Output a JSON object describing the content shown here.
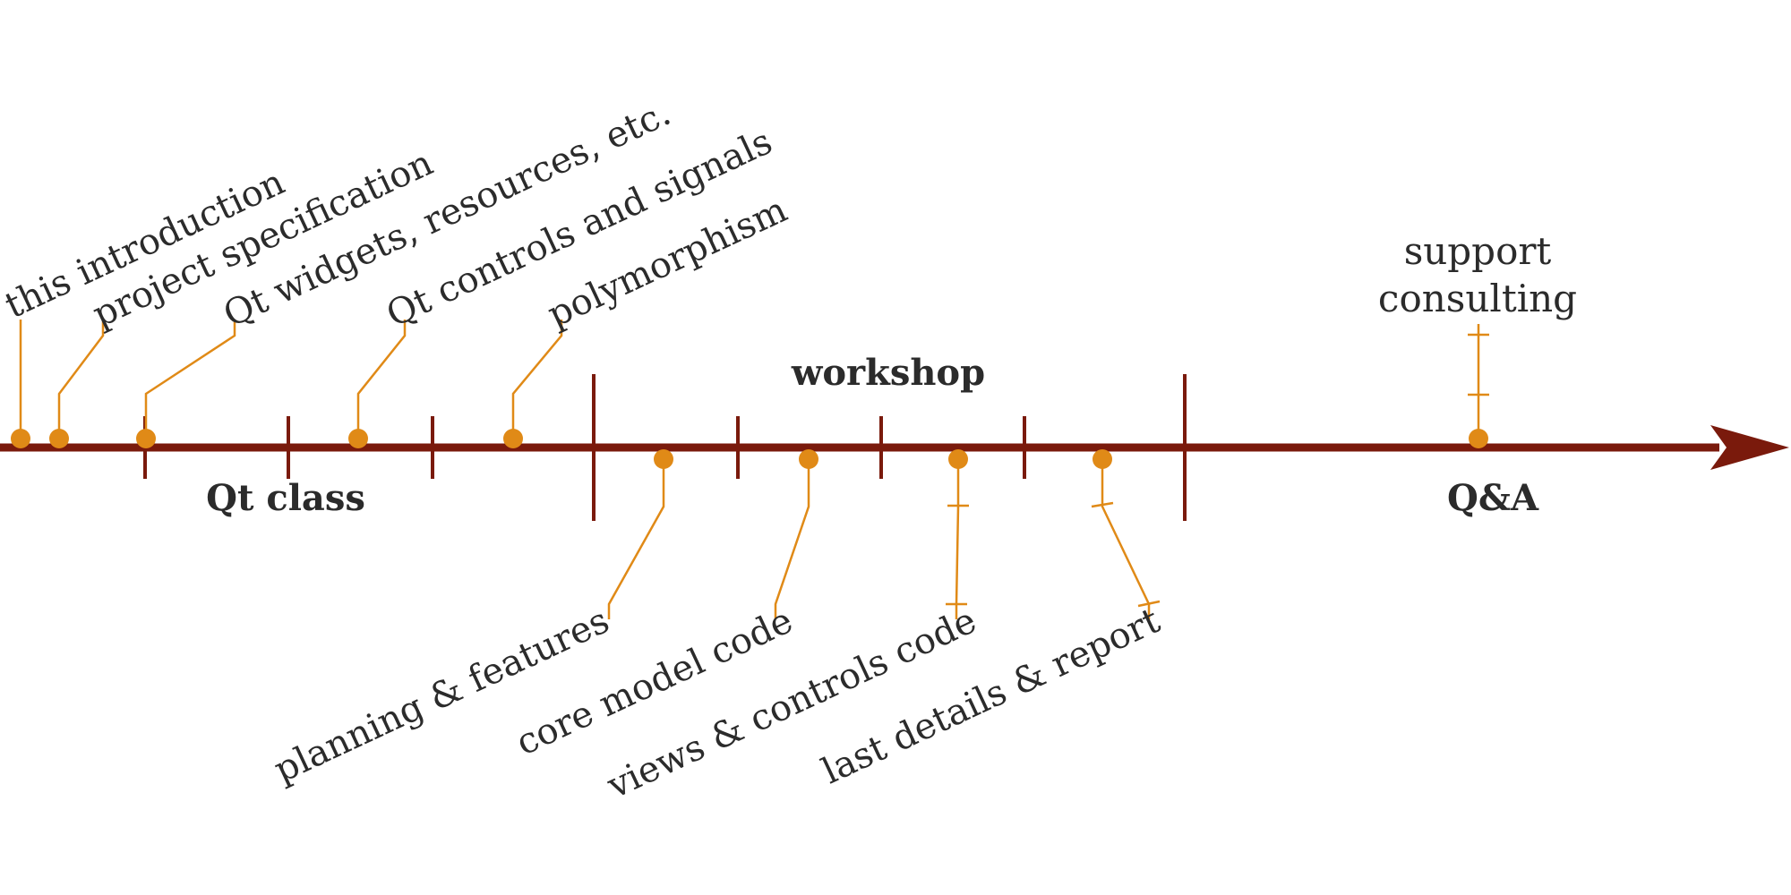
{
  "colors": {
    "axis": "#7a1a0c",
    "marker": "#e08a17",
    "text": "#2b2b2b",
    "background": "#ffffff"
  },
  "phases": [
    {
      "id": "qt-class",
      "label": "Qt class"
    },
    {
      "id": "workshop",
      "label": "workshop"
    },
    {
      "id": "qa",
      "label": "Q&A"
    }
  ],
  "events_above": [
    {
      "id": "this-introduction",
      "label": "this introduction"
    },
    {
      "id": "project-specification",
      "label": "project specification"
    },
    {
      "id": "qt-widgets",
      "label": "Qt widgets, resources, etc."
    },
    {
      "id": "qt-controls",
      "label": "Qt controls and signals"
    },
    {
      "id": "polymorphism",
      "label": "polymorphism"
    }
  ],
  "events_below": [
    {
      "id": "planning-features",
      "label": "planning & features"
    },
    {
      "id": "core-model-code",
      "label": "core model code"
    },
    {
      "id": "views-controls-code",
      "label": "views & controls code"
    },
    {
      "id": "last-details-report",
      "label": "last details & report"
    }
  ],
  "qa_event": {
    "lines": [
      "support",
      "consulting"
    ]
  }
}
